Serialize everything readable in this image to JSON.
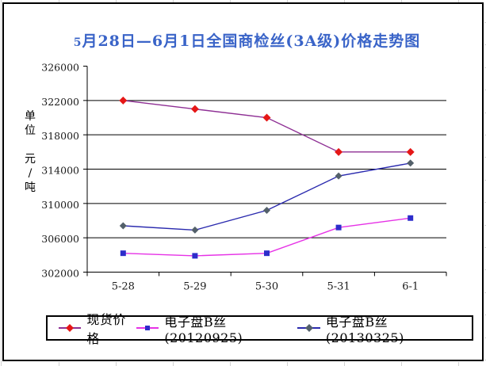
{
  "chart_data": {
    "type": "line",
    "title": "5月28日—6月1日全国商检丝(3A级)价格走势图",
    "title_color": "#3a64c8",
    "ylabel": "单位 元/吨",
    "ylabel_lines": [
      "单",
      "位",
      " ",
      "元",
      "/",
      "吨"
    ],
    "xlabel": "",
    "categories": [
      "5-28",
      "5-29",
      "5-30",
      "5-31",
      "6-1"
    ],
    "ylim": [
      302000,
      326000
    ],
    "yticks": [
      326000,
      322000,
      318000,
      314000,
      310000,
      306000,
      302000
    ],
    "grid": true,
    "legend_position": "bottom",
    "axis_color": "#000000",
    "tick_label_color": "#1a1a1a",
    "series": [
      {
        "name": "现货价格",
        "values": [
          322000,
          321000,
          320000,
          316000,
          316000
        ],
        "line_color": "#8e2f94",
        "marker": "diamond",
        "marker_color": "#e51717"
      },
      {
        "name": "电子盘B丝(20120925)",
        "values": [
          304200,
          303900,
          304200,
          307200,
          308300
        ],
        "line_color": "#e632e6",
        "marker": "square",
        "marker_color": "#2d2dcb"
      },
      {
        "name": "电子盘B丝(20130325)",
        "values": [
          307400,
          306900,
          309200,
          313200,
          314700
        ],
        "line_color": "#2a2aae",
        "marker": "diamond",
        "marker_color": "#53606a"
      }
    ]
  }
}
